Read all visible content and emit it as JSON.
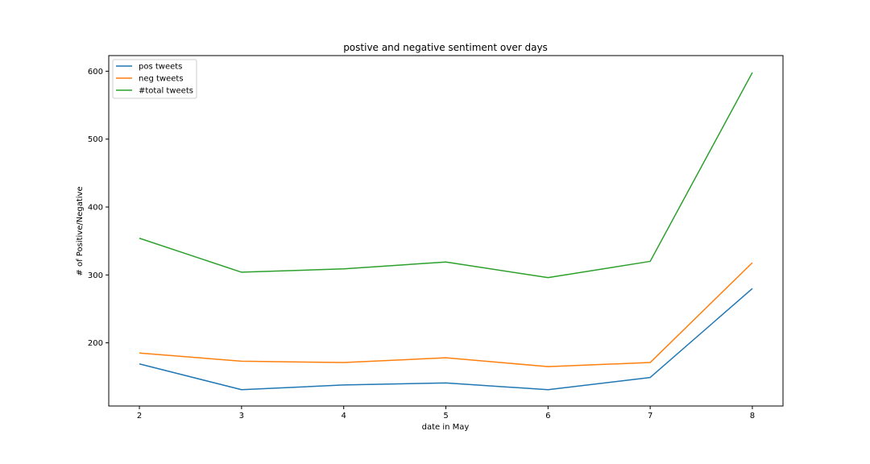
{
  "chart_data": {
    "type": "line",
    "title": "postive and negative sentiment over days",
    "xlabel": "date in May",
    "ylabel": "# of Positive/Negative",
    "x": [
      2,
      3,
      4,
      5,
      6,
      7,
      8
    ],
    "xlim": [
      1.7,
      8.3
    ],
    "ylim": [
      107,
      623
    ],
    "xticks": [
      "2",
      "3",
      "4",
      "5",
      "6",
      "7",
      "8"
    ],
    "yticks": [
      "200",
      "300",
      "400",
      "500",
      "600"
    ],
    "grid": false,
    "legend_position": "upper-left",
    "series": [
      {
        "name": "pos tweets",
        "color": "#1f77b4",
        "values": [
          169,
          131,
          138,
          141,
          131,
          149,
          280
        ]
      },
      {
        "name": "neg tweets",
        "color": "#ff7f0e",
        "values": [
          185,
          173,
          171,
          178,
          165,
          171,
          318
        ]
      },
      {
        "name": "#total tweets",
        "color": "#2ca02c",
        "values": [
          354,
          304,
          309,
          319,
          296,
          320,
          598
        ]
      }
    ]
  }
}
